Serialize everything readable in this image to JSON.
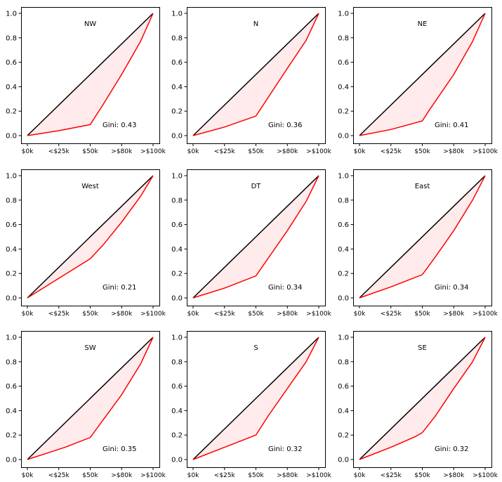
{
  "chart_data": [
    {
      "type": "line",
      "title": "NW",
      "annotation": "Gini: 0.43",
      "x_ticks": [
        "$0k",
        "<$25k",
        "$50k",
        ">$80k",
        ">$100k"
      ],
      "y_ticks": [
        "0.0",
        "0.2",
        "0.4",
        "0.6",
        "0.8",
        "1.0"
      ],
      "xlim": [
        0,
        1
      ],
      "ylim": [
        0,
        1
      ],
      "equality_line": {
        "x": [
          0,
          1
        ],
        "y": [
          0,
          1
        ],
        "color": "#000000"
      },
      "series": [
        {
          "x": [
            0,
            0.25,
            0.5,
            0.6,
            0.75,
            0.9,
            1.0
          ],
          "y": [
            0,
            0.04,
            0.09,
            0.25,
            0.5,
            0.77,
            1.0
          ],
          "color": "#ff0000",
          "fill": "#ff0000",
          "fill_opacity": 0.08
        }
      ]
    },
    {
      "type": "line",
      "title": "N",
      "annotation": "Gini: 0.36",
      "x_ticks": [
        "$0k",
        "<$25k",
        "$50k",
        ">$80k",
        ">$100k"
      ],
      "y_ticks": [
        "0.0",
        "0.2",
        "0.4",
        "0.6",
        "0.8",
        "1.0"
      ],
      "xlim": [
        0,
        1
      ],
      "ylim": [
        0,
        1
      ],
      "equality_line": {
        "x": [
          0,
          1
        ],
        "y": [
          0,
          1
        ],
        "color": "#000000"
      },
      "series": [
        {
          "x": [
            0,
            0.25,
            0.5,
            0.75,
            0.9,
            1.0
          ],
          "y": [
            0,
            0.07,
            0.16,
            0.55,
            0.78,
            1.0
          ],
          "color": "#ff0000",
          "fill": "#ff0000",
          "fill_opacity": 0.08
        }
      ]
    },
    {
      "type": "line",
      "title": "NE",
      "annotation": "Gini: 0.41",
      "x_ticks": [
        "$0k",
        "<$25k",
        "$50k",
        ">$80k",
        ">$100k"
      ],
      "y_ticks": [
        "0.0",
        "0.2",
        "0.4",
        "0.6",
        "0.8",
        "1.0"
      ],
      "xlim": [
        0,
        1
      ],
      "ylim": [
        0,
        1
      ],
      "equality_line": {
        "x": [
          0,
          1
        ],
        "y": [
          0,
          1
        ],
        "color": "#000000"
      },
      "series": [
        {
          "x": [
            0,
            0.25,
            0.5,
            0.55,
            0.75,
            0.9,
            1.0
          ],
          "y": [
            0,
            0.05,
            0.12,
            0.2,
            0.5,
            0.77,
            1.0
          ],
          "color": "#ff0000",
          "fill": "#ff0000",
          "fill_opacity": 0.08
        }
      ]
    },
    {
      "type": "line",
      "title": "West",
      "annotation": "Gini: 0.21",
      "x_ticks": [
        "$0k",
        "<$25k",
        "$50k",
        ">$80k",
        ">$100k"
      ],
      "y_ticks": [
        "0.0",
        "0.2",
        "0.4",
        "0.6",
        "0.8",
        "1.0"
      ],
      "xlim": [
        0,
        1
      ],
      "ylim": [
        0,
        1
      ],
      "equality_line": {
        "x": [
          0,
          1
        ],
        "y": [
          0,
          1
        ],
        "color": "#000000"
      },
      "series": [
        {
          "x": [
            0,
            0.25,
            0.5,
            0.6,
            0.75,
            0.9,
            1.0
          ],
          "y": [
            0,
            0.16,
            0.32,
            0.43,
            0.62,
            0.83,
            1.0
          ],
          "color": "#ff0000",
          "fill": "#ff0000",
          "fill_opacity": 0.08
        }
      ]
    },
    {
      "type": "line",
      "title": "DT",
      "annotation": "Gini: 0.34",
      "x_ticks": [
        "$0k",
        "<$25k",
        "$50k",
        ">$80k",
        ">$100k"
      ],
      "y_ticks": [
        "0.0",
        "0.2",
        "0.4",
        "0.6",
        "0.8",
        "1.0"
      ],
      "xlim": [
        0,
        1
      ],
      "ylim": [
        0,
        1
      ],
      "equality_line": {
        "x": [
          0,
          1
        ],
        "y": [
          0,
          1
        ],
        "color": "#000000"
      },
      "series": [
        {
          "x": [
            0,
            0.25,
            0.5,
            0.75,
            0.9,
            1.0
          ],
          "y": [
            0,
            0.08,
            0.18,
            0.55,
            0.79,
            1.0
          ],
          "color": "#ff0000",
          "fill": "#ff0000",
          "fill_opacity": 0.08
        }
      ]
    },
    {
      "type": "line",
      "title": "East",
      "annotation": "Gini: 0.34",
      "x_ticks": [
        "$0k",
        "<$25k",
        "$50k",
        ">$80k",
        ">$100k"
      ],
      "y_ticks": [
        "0.0",
        "0.2",
        "0.4",
        "0.6",
        "0.8",
        "1.0"
      ],
      "xlim": [
        0,
        1
      ],
      "ylim": [
        0,
        1
      ],
      "equality_line": {
        "x": [
          0,
          1
        ],
        "y": [
          0,
          1
        ],
        "color": "#000000"
      },
      "series": [
        {
          "x": [
            0,
            0.25,
            0.5,
            0.6,
            0.75,
            0.9,
            1.0
          ],
          "y": [
            0,
            0.09,
            0.19,
            0.33,
            0.55,
            0.8,
            1.0
          ],
          "color": "#ff0000",
          "fill": "#ff0000",
          "fill_opacity": 0.08
        }
      ]
    },
    {
      "type": "line",
      "title": "SW",
      "annotation": "Gini: 0.35",
      "x_ticks": [
        "$0k",
        "<$25k",
        "$50k",
        ">$80k",
        ">$100k"
      ],
      "y_ticks": [
        "0.0",
        "0.2",
        "0.4",
        "0.6",
        "0.8",
        "1.0"
      ],
      "xlim": [
        0,
        1
      ],
      "ylim": [
        0,
        1
      ],
      "equality_line": {
        "x": [
          0,
          1
        ],
        "y": [
          0,
          1
        ],
        "color": "#000000"
      },
      "series": [
        {
          "x": [
            0,
            0.15,
            0.3,
            0.5,
            0.6,
            0.75,
            0.9,
            1.0
          ],
          "y": [
            0,
            0.05,
            0.1,
            0.18,
            0.32,
            0.53,
            0.78,
            1.0
          ],
          "color": "#ff0000",
          "fill": "#ff0000",
          "fill_opacity": 0.08
        }
      ]
    },
    {
      "type": "line",
      "title": "S",
      "annotation": "Gini: 0.32",
      "x_ticks": [
        "$0k",
        "<$25k",
        "$50k",
        ">$80k",
        ">$100k"
      ],
      "y_ticks": [
        "0.0",
        "0.2",
        "0.4",
        "0.6",
        "0.8",
        "1.0"
      ],
      "xlim": [
        0,
        1
      ],
      "ylim": [
        0,
        1
      ],
      "equality_line": {
        "x": [
          0,
          1
        ],
        "y": [
          0,
          1
        ],
        "color": "#000000"
      },
      "series": [
        {
          "x": [
            0,
            0.25,
            0.5,
            0.6,
            0.75,
            0.9,
            1.0
          ],
          "y": [
            0,
            0.1,
            0.2,
            0.36,
            0.58,
            0.8,
            1.0
          ],
          "color": "#ff0000",
          "fill": "#ff0000",
          "fill_opacity": 0.08
        }
      ]
    },
    {
      "type": "line",
      "title": "SE",
      "annotation": "Gini: 0.32",
      "x_ticks": [
        "$0k",
        "<$25k",
        "$50k",
        ">$80k",
        ">$100k"
      ],
      "y_ticks": [
        "0.0",
        "0.2",
        "0.4",
        "0.6",
        "0.8",
        "1.0"
      ],
      "xlim": [
        0,
        1
      ],
      "ylim": [
        0,
        1
      ],
      "equality_line": {
        "x": [
          0,
          1
        ],
        "y": [
          0,
          1
        ],
        "color": "#000000"
      },
      "series": [
        {
          "x": [
            0,
            0.25,
            0.45,
            0.5,
            0.6,
            0.75,
            0.9,
            1.0
          ],
          "y": [
            0,
            0.1,
            0.19,
            0.22,
            0.35,
            0.58,
            0.8,
            1.0
          ],
          "color": "#ff0000",
          "fill": "#ff0000",
          "fill_opacity": 0.08
        }
      ]
    }
  ]
}
